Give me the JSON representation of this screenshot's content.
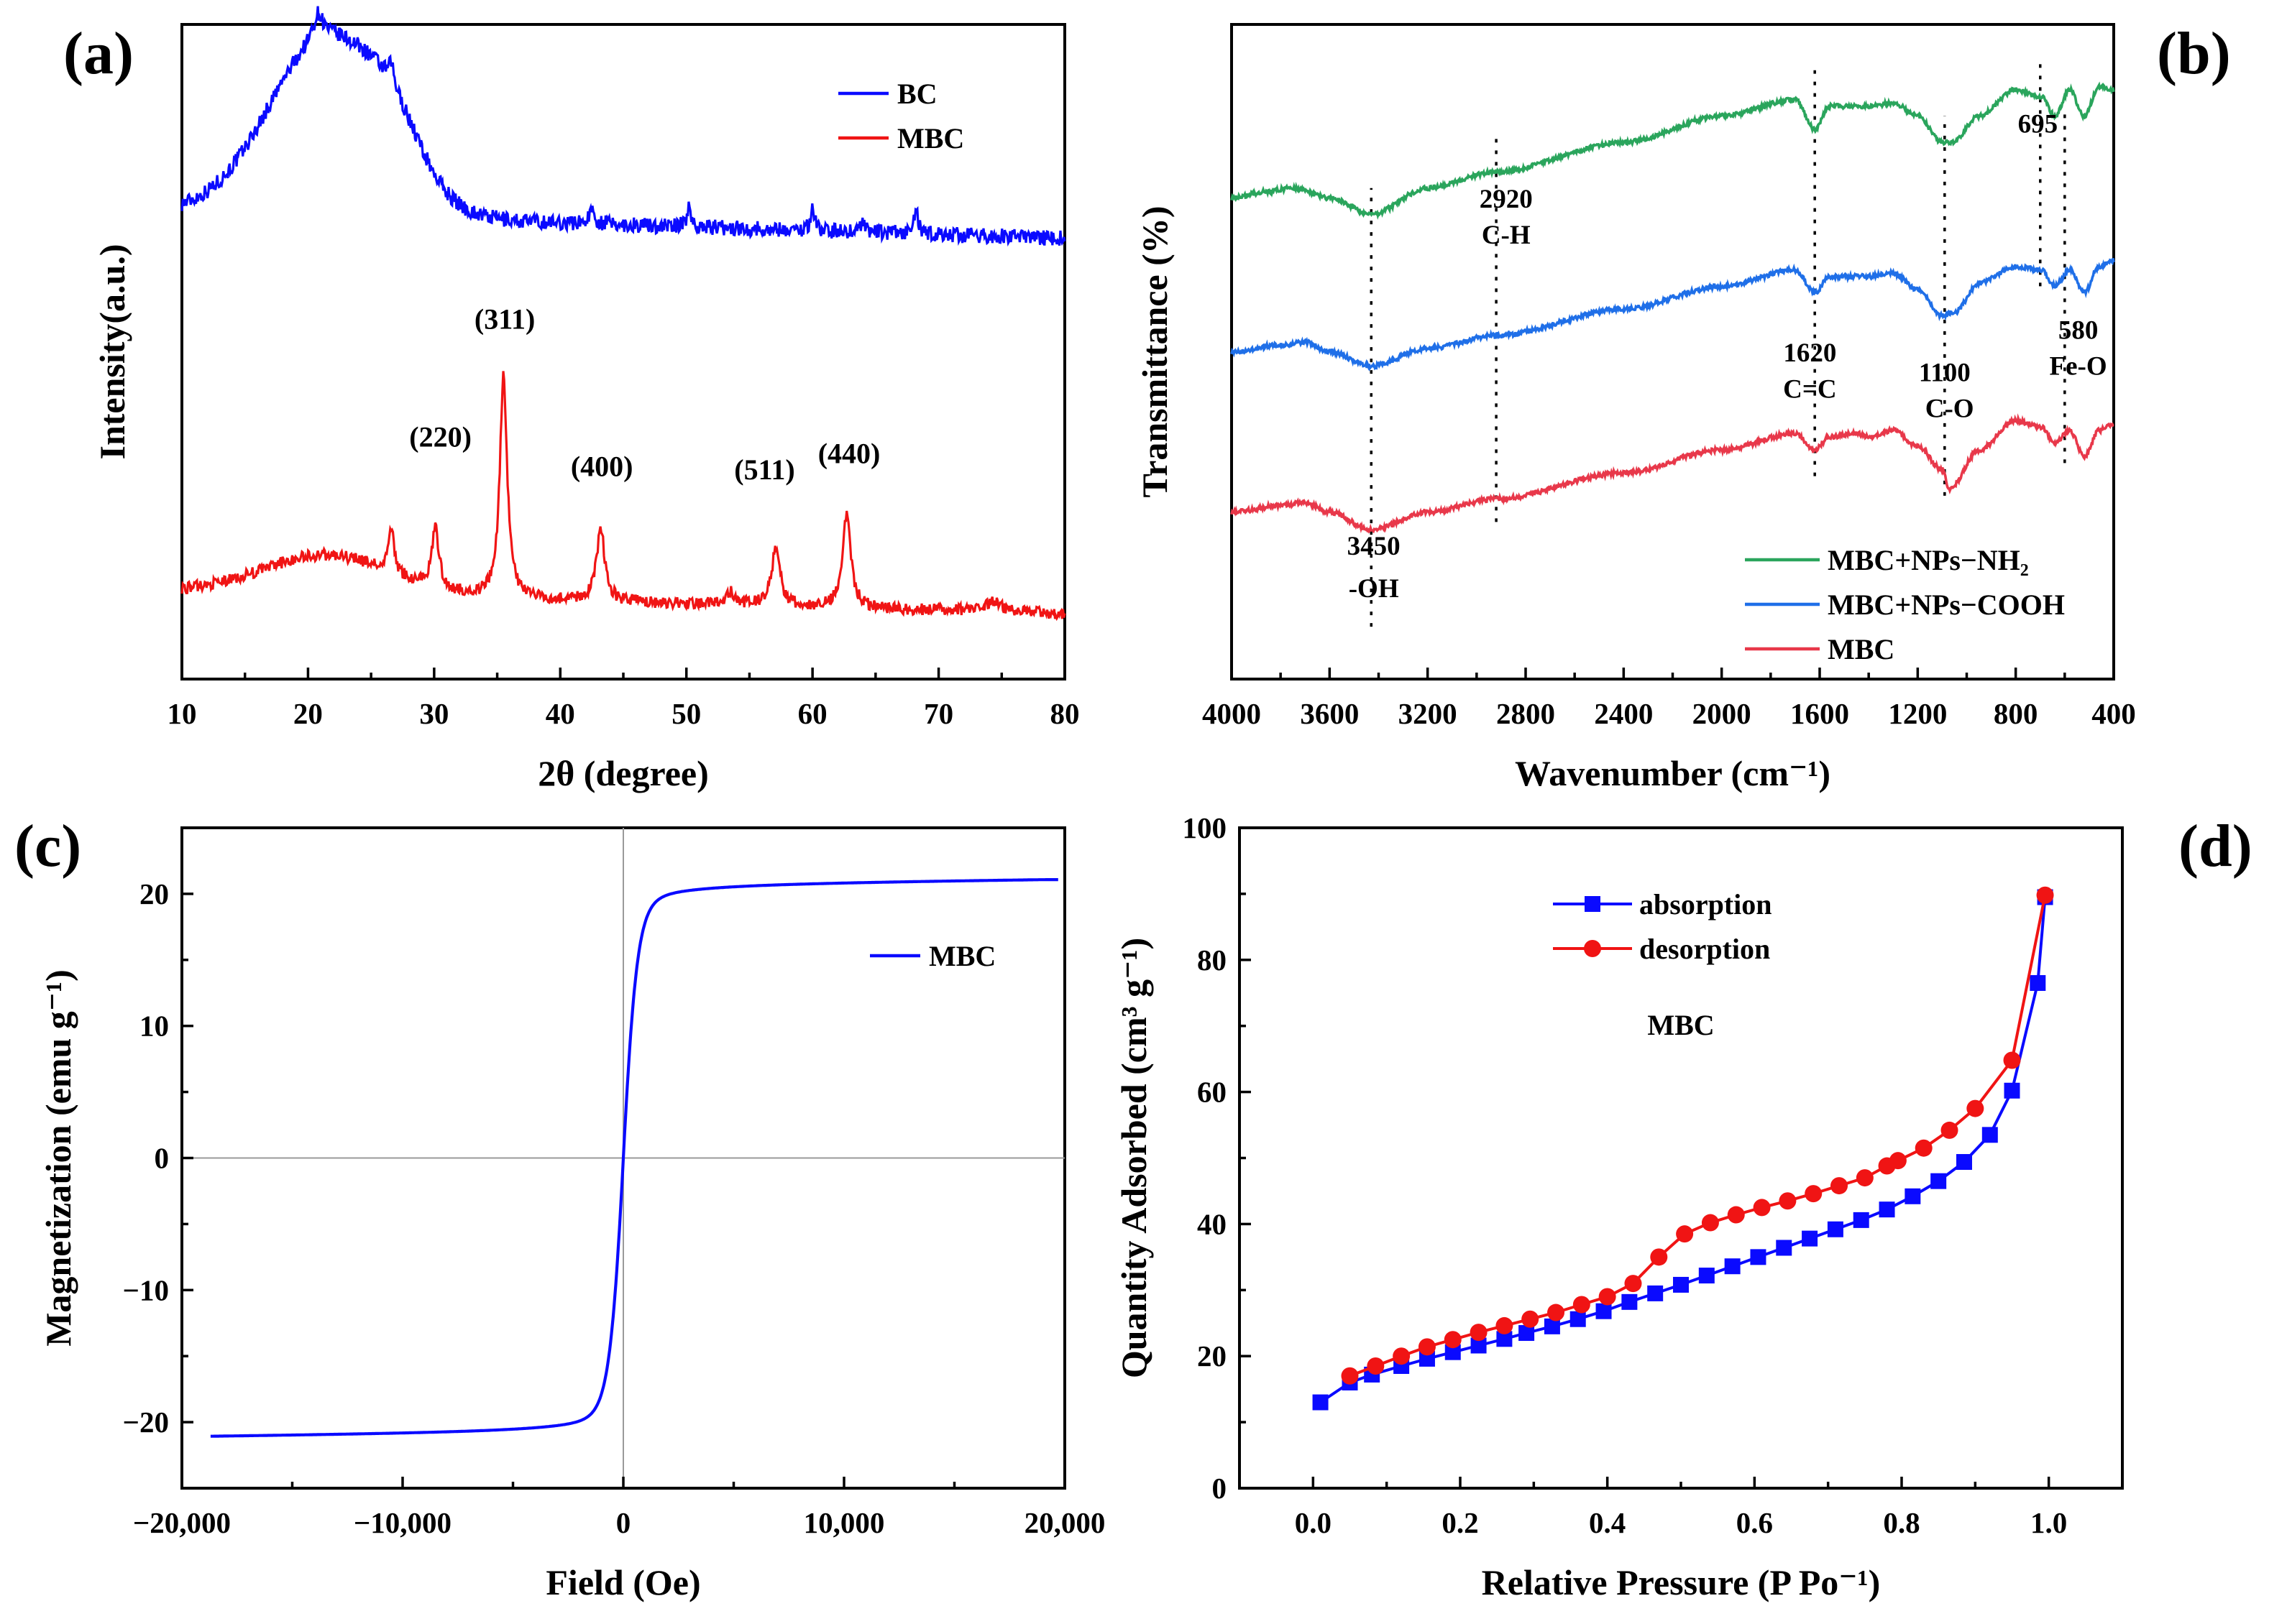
{
  "colors": {
    "blue": "#0a0aff",
    "red": "#f01414",
    "green": "#2aa55c",
    "ftir_blue": "#1f6fe8",
    "ftir_red": "#e8384a",
    "grid": "#9a9a9a"
  },
  "chart_data": [
    {
      "panel": "(a)",
      "type": "line",
      "xlabel": "2θ (degree)",
      "ylabel": "Intensity(a.u.)",
      "xlim": [
        10,
        80
      ],
      "xticks": [
        10,
        20,
        30,
        40,
        50,
        60,
        70,
        80
      ],
      "legend": {
        "position": "top-right",
        "entries": [
          "BC",
          "MBC"
        ]
      },
      "series": [
        {
          "name": "BC",
          "color": "blue",
          "baseline": 0.715,
          "noise": 0.012,
          "components": [
            {
              "type": "gauss",
              "center": 21.5,
              "width": 4.6,
              "height": 0.27
            },
            {
              "type": "gauss",
              "center": 26.8,
              "width": 2.2,
              "height": 0.06
            },
            {
              "type": "lorentz",
              "center": 20.8,
              "width": 0.5,
              "height": 0.04
            },
            {
              "type": "lorentz",
              "center": 26.6,
              "width": 0.25,
              "height": 0.03
            },
            {
              "type": "lorentz",
              "center": 42.5,
              "width": 0.3,
              "height": 0.02
            },
            {
              "type": "lorentz",
              "center": 50.2,
              "width": 0.2,
              "height": 0.03
            },
            {
              "type": "lorentz",
              "center": 60.0,
              "width": 0.2,
              "height": 0.035
            },
            {
              "type": "lorentz",
              "center": 64.0,
              "width": 0.2,
              "height": 0.02
            },
            {
              "type": "lorentz",
              "center": 68.2,
              "width": 0.2,
              "height": 0.035
            }
          ],
          "slope": -0.0006
        },
        {
          "name": "MBC",
          "color": "red",
          "baseline": 0.135,
          "noise": 0.009,
          "components": [
            {
              "type": "gauss",
              "center": 21.5,
              "width": 5.0,
              "height": 0.06
            },
            {
              "type": "lorentz",
              "center": 26.6,
              "width": 0.25,
              "height": 0.07
            },
            {
              "type": "lorentz",
              "center": 30.1,
              "width": 0.35,
              "height": 0.09
            },
            {
              "type": "lorentz",
              "center": 35.5,
              "width": 0.35,
              "height": 0.34
            },
            {
              "type": "lorentz",
              "center": 43.2,
              "width": 0.4,
              "height": 0.11
            },
            {
              "type": "lorentz",
              "center": 53.5,
              "width": 0.4,
              "height": 0.02
            },
            {
              "type": "lorentz",
              "center": 57.1,
              "width": 0.4,
              "height": 0.09
            },
            {
              "type": "lorentz",
              "center": 62.7,
              "width": 0.4,
              "height": 0.14
            },
            {
              "type": "lorentz",
              "center": 74.3,
              "width": 0.8,
              "height": 0.015
            }
          ],
          "slope": -0.0005
        }
      ],
      "annotations": [
        {
          "text": "(311)",
          "x": 35.6,
          "y": 0.535
        },
        {
          "text": "(220)",
          "x": 30.5,
          "y": 0.355
        },
        {
          "text": "(400)",
          "x": 43.3,
          "y": 0.31
        },
        {
          "text": "(511)",
          "x": 56.2,
          "y": 0.305
        },
        {
          "text": "(440)",
          "x": 62.9,
          "y": 0.33
        }
      ]
    },
    {
      "panel": "(b)",
      "type": "line",
      "xlabel": "Wavenumber (cm⁻¹)",
      "ylabel": "Transmittance (%)",
      "xlim": [
        4000,
        400
      ],
      "xticks": [
        4000,
        3600,
        3200,
        2800,
        2400,
        2000,
        1600,
        1200,
        800,
        400
      ],
      "legend": {
        "position": "bottom-right",
        "entries": [
          "MBC+NPs−NH₂",
          "MBC+NPs−COOH",
          "MBC"
        ]
      },
      "series": [
        {
          "name": "MBC+NPs−NH₂",
          "color": "green",
          "anchors": [
            [
              4000,
              0.735
            ],
            [
              3850,
              0.745
            ],
            [
              3750,
              0.75
            ],
            [
              3600,
              0.735
            ],
            [
              3430,
              0.71
            ],
            [
              3200,
              0.75
            ],
            [
              2920,
              0.775
            ],
            [
              2400,
              0.82
            ],
            [
              2000,
              0.86
            ],
            [
              1700,
              0.885
            ],
            [
              1620,
              0.84
            ],
            [
              1560,
              0.875
            ],
            [
              1400,
              0.875
            ],
            [
              1300,
              0.88
            ],
            [
              1200,
              0.86
            ],
            [
              1100,
              0.82
            ],
            [
              1060,
              0.82
            ],
            [
              950,
              0.86
            ],
            [
              800,
              0.9
            ],
            [
              695,
              0.89
            ],
            [
              640,
              0.86
            ],
            [
              580,
              0.9
            ],
            [
              520,
              0.86
            ],
            [
              460,
              0.905
            ],
            [
              400,
              0.9
            ]
          ],
          "noise": 0.0035
        },
        {
          "name": "MBC+NPs−COOH",
          "color": "ftir_blue",
          "anchors": [
            [
              4000,
              0.5
            ],
            [
              3800,
              0.51
            ],
            [
              3700,
              0.515
            ],
            [
              3600,
              0.5
            ],
            [
              3430,
              0.478
            ],
            [
              3200,
              0.505
            ],
            [
              2920,
              0.525
            ],
            [
              2400,
              0.565
            ],
            [
              2000,
              0.6
            ],
            [
              1700,
              0.625
            ],
            [
              1620,
              0.59
            ],
            [
              1560,
              0.615
            ],
            [
              1400,
              0.615
            ],
            [
              1300,
              0.62
            ],
            [
              1200,
              0.595
            ],
            [
              1100,
              0.555
            ],
            [
              1050,
              0.56
            ],
            [
              950,
              0.605
            ],
            [
              800,
              0.63
            ],
            [
              695,
              0.625
            ],
            [
              640,
              0.6
            ],
            [
              580,
              0.625
            ],
            [
              520,
              0.59
            ],
            [
              460,
              0.63
            ],
            [
              400,
              0.64
            ]
          ],
          "noise": 0.0035
        },
        {
          "name": "MBC",
          "color": "ftir_red",
          "anchors": [
            [
              4000,
              0.255
            ],
            [
              3800,
              0.265
            ],
            [
              3700,
              0.27
            ],
            [
              3600,
              0.255
            ],
            [
              3430,
              0.228
            ],
            [
              3200,
              0.255
            ],
            [
              2920,
              0.275
            ],
            [
              2400,
              0.315
            ],
            [
              2000,
              0.35
            ],
            [
              1700,
              0.375
            ],
            [
              1620,
              0.35
            ],
            [
              1560,
              0.37
            ],
            [
              1450,
              0.375
            ],
            [
              1400,
              0.37
            ],
            [
              1300,
              0.38
            ],
            [
              1200,
              0.355
            ],
            [
              1100,
              0.32
            ],
            [
              1070,
              0.29
            ],
            [
              950,
              0.35
            ],
            [
              800,
              0.395
            ],
            [
              695,
              0.385
            ],
            [
              640,
              0.36
            ],
            [
              580,
              0.38
            ],
            [
              520,
              0.34
            ],
            [
              460,
              0.38
            ],
            [
              400,
              0.39
            ]
          ],
          "noise": 0.0035
        }
      ],
      "markers": [
        {
          "x": 3430,
          "y1": 0.08,
          "y2": 0.75
        },
        {
          "x": 2920,
          "y1": 0.24,
          "y2": 0.83
        },
        {
          "x": 1620,
          "y1": 0.31,
          "y2": 0.93
        },
        {
          "x": 1090,
          "y1": 0.28,
          "y2": 0.86
        },
        {
          "x": 700,
          "y1": 0.6,
          "y2": 0.94
        },
        {
          "x": 600,
          "y1": 0.33,
          "y2": 0.87
        }
      ],
      "annotations": [
        {
          "text": "2920",
          "x": 2880,
          "y": 0.72
        },
        {
          "text": "C-H",
          "x": 2880,
          "y": 0.665
        },
        {
          "text": "3450",
          "x": 3420,
          "y": 0.19
        },
        {
          "text": "-OH",
          "x": 3420,
          "y": 0.125
        },
        {
          "text": "1620",
          "x": 1640,
          "y": 0.485
        },
        {
          "text": "C=C",
          "x": 1640,
          "y": 0.43
        },
        {
          "text": "1100",
          "x": 1090,
          "y": 0.455
        },
        {
          "text": "C-O",
          "x": 1070,
          "y": 0.4
        },
        {
          "text": "580",
          "x": 545,
          "y": 0.52
        },
        {
          "text": "Fe-O",
          "x": 545,
          "y": 0.465
        },
        {
          "text": "695",
          "x": 710,
          "y": 0.835
        }
      ]
    },
    {
      "panel": "(c)",
      "type": "line",
      "xlabel": "Field (Oe)",
      "ylabel": "Magnetization (emu g⁻¹)",
      "xlim": [
        -20000,
        20000
      ],
      "ylim": [
        -25,
        25
      ],
      "xticks": [
        -20000,
        -10000,
        0,
        10000,
        20000
      ],
      "xtick_labels": [
        "−20,000",
        "−10,000",
        "0",
        "10,000",
        "20,000"
      ],
      "yticks": [
        -20,
        -10,
        0,
        10,
        20
      ],
      "ytick_labels": [
        "−20",
        "−10",
        "0",
        "10",
        "20"
      ],
      "legend": {
        "position": "top-right",
        "entries": [
          "MBC"
        ]
      },
      "series": [
        {
          "name": "MBC",
          "color": "blue",
          "x_range": [
            -18700,
            19700
          ],
          "ms": 21.2,
          "k": 650,
          "shape": "a*b/(1+a*b)",
          "b": 0.5
        }
      ]
    },
    {
      "panel": "(d)",
      "type": "line",
      "xlabel": "Relative Pressure (P Po⁻¹)",
      "ylabel": "Quantity Adsorbed (cm³ g⁻¹)",
      "xlim": [
        -0.1,
        1.1
      ],
      "ylim": [
        0,
        100
      ],
      "xticks": [
        0.0,
        0.2,
        0.4,
        0.6,
        0.8,
        1.0
      ],
      "xtick_labels": [
        "0.0",
        "0.2",
        "0.4",
        "0.6",
        "0.8",
        "1.0"
      ],
      "yticks": [
        0,
        20,
        40,
        60,
        80,
        100
      ],
      "legend": {
        "position": "top-left",
        "entries": [
          "absorption",
          "desorption"
        ]
      },
      "note": "MBC",
      "series": [
        {
          "name": "absorption",
          "color": "blue",
          "marker": "square",
          "x": [
            0.01,
            0.05,
            0.08,
            0.12,
            0.155,
            0.19,
            0.225,
            0.26,
            0.29,
            0.325,
            0.36,
            0.395,
            0.43,
            0.465,
            0.5,
            0.535,
            0.57,
            0.605,
            0.64,
            0.675,
            0.71,
            0.745,
            0.78,
            0.815,
            0.85,
            0.885,
            0.92,
            0.95,
            0.985,
            0.995
          ],
          "y": [
            13.0,
            16.0,
            17.2,
            18.5,
            19.6,
            20.6,
            21.6,
            22.6,
            23.5,
            24.5,
            25.6,
            26.8,
            28.2,
            29.5,
            30.8,
            32.2,
            33.6,
            35.0,
            36.4,
            37.8,
            39.2,
            40.6,
            42.2,
            44.2,
            46.5,
            49.4,
            53.5,
            60.2,
            76.5,
            89.5
          ]
        },
        {
          "name": "desorption",
          "color": "red",
          "marker": "circle",
          "x": [
            0.05,
            0.085,
            0.12,
            0.155,
            0.19,
            0.225,
            0.26,
            0.295,
            0.33,
            0.365,
            0.4,
            0.435,
            0.47,
            0.505,
            0.54,
            0.575,
            0.61,
            0.645,
            0.68,
            0.715,
            0.75,
            0.78,
            0.795,
            0.83,
            0.865,
            0.9,
            0.95,
            0.995
          ],
          "y": [
            17.0,
            18.5,
            20.0,
            21.4,
            22.5,
            23.6,
            24.6,
            25.6,
            26.6,
            27.8,
            29.0,
            31.0,
            35.0,
            38.5,
            40.2,
            41.4,
            42.5,
            43.5,
            44.6,
            45.8,
            47.0,
            48.8,
            49.6,
            51.5,
            54.2,
            57.5,
            64.8,
            89.8
          ]
        }
      ]
    }
  ]
}
